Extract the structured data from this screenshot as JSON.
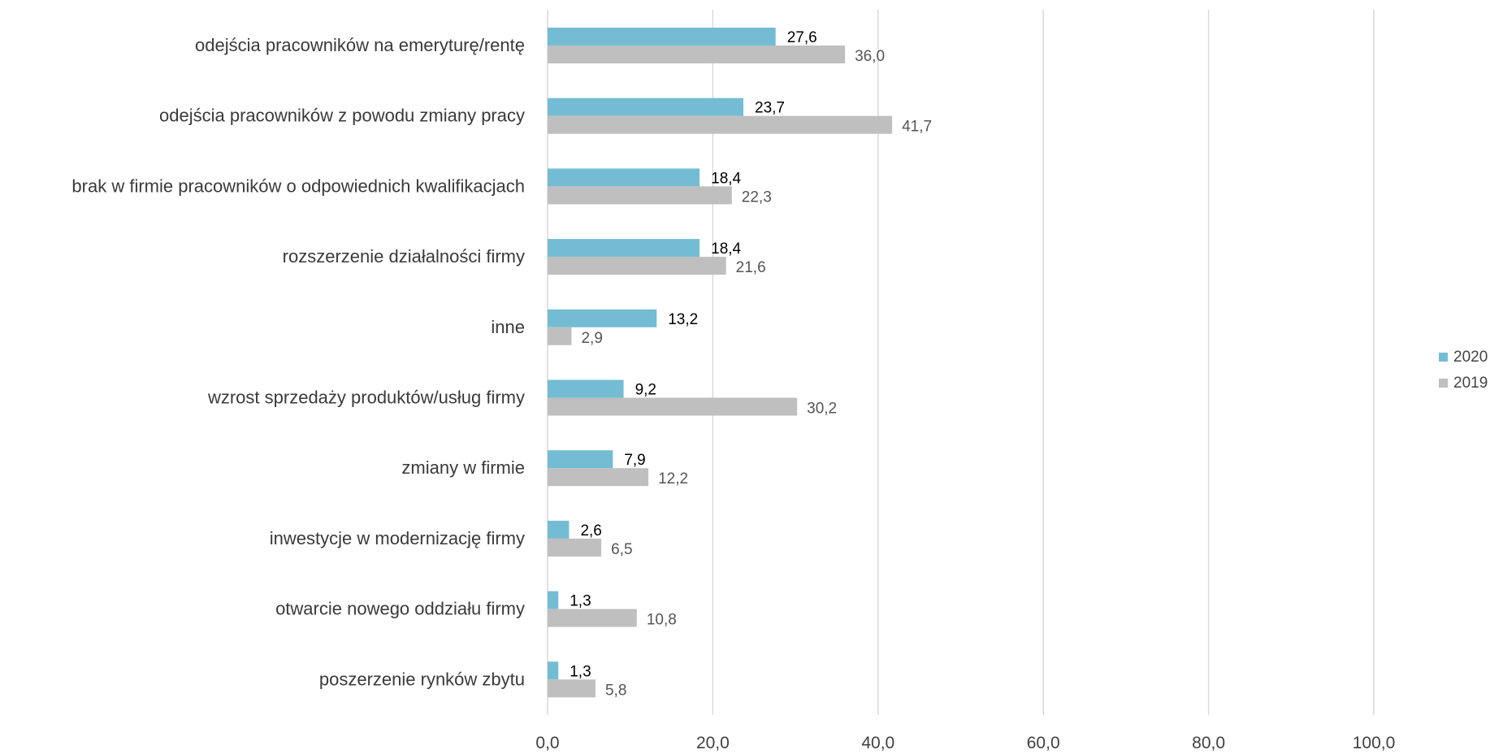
{
  "chart_data": {
    "type": "bar",
    "orientation": "horizontal",
    "categories": [
      "odejścia pracowników na emeryturę/rentę",
      "odejścia pracowników z powodu zmiany pracy",
      "brak w firmie pracowników o odpowiednich kwalifikacjach",
      "rozszerzenie działalności firmy",
      "inne",
      "wzrost sprzedaży produktów/usług firmy",
      "zmiany w firmie",
      "inwestycje w modernizację firmy",
      "otwarcie nowego oddziału firmy",
      "poszerzenie rynków zbytu"
    ],
    "series": [
      {
        "name": "2020",
        "color": "#74bcd4",
        "values": [
          27.6,
          23.7,
          18.4,
          18.4,
          13.2,
          9.2,
          7.9,
          2.6,
          1.3,
          1.3
        ],
        "labels": [
          "27,6",
          "23,7",
          "18,4",
          "18,4",
          "13,2",
          "9,2",
          "7,9",
          "2,6",
          "1,3",
          "1,3"
        ]
      },
      {
        "name": "2019",
        "color": "#bfbfbf",
        "values": [
          36.0,
          41.7,
          22.3,
          21.6,
          2.9,
          30.2,
          12.2,
          6.5,
          10.8,
          5.8
        ],
        "labels": [
          "36,0",
          "41,7",
          "22,3",
          "21,6",
          "2,9",
          "30,2",
          "12,2",
          "6,5",
          "10,8",
          "5,8"
        ]
      }
    ],
    "xlim": [
      0,
      100
    ],
    "xticks": [
      0,
      20,
      40,
      60,
      80,
      100
    ],
    "xtick_labels": [
      "0,0",
      "20,0",
      "40,0",
      "60,0",
      "80,0",
      "100,0"
    ],
    "grid": true,
    "legend_position": "right"
  }
}
